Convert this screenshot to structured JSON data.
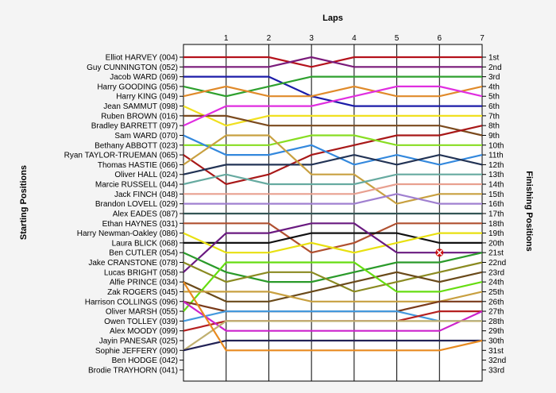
{
  "chart_data": {
    "type": "line",
    "title": "",
    "xlabel": "Laps",
    "ylabel": "Starting Positions",
    "ylabel_right": "Finishing Positions",
    "x": [
      0,
      1,
      2,
      3,
      4,
      5,
      6,
      7
    ],
    "xticks": [
      "1",
      "2",
      "3",
      "4",
      "5",
      "6",
      "7"
    ],
    "ylim": [
      1,
      33
    ],
    "grid": true,
    "starting_order": [
      "Elliot HARVEY (004)",
      "Guy CUNNINGTON (052)",
      "Jacob WARD (069)",
      "Harry GOODING (056)",
      "Harry KING (049)",
      "Jean SAMMUT (098)",
      "Ruben BROWN (016)",
      "Bradley BARRETT (097)",
      "Sam WARD (070)",
      "Bethany ABBOTT (023)",
      "Ryan TAYLOR-TRUEMAN (065)",
      "Thomas HASTIE (066)",
      "Oliver HALL (024)",
      "Marcie RUSSELL (044)",
      "Jack FINCH (048)",
      "Brandon LOVELL (029)",
      "Alex EADES (087)",
      "Ethan HAYNES (031)",
      "Harry Newman-Oakley (086)",
      "Laura BLICK (068)",
      "Ben CUTLER (054)",
      "Jake CRANSTONE (078)",
      "Lucas BRIGHT (058)",
      "Alfie PRINCE (034)",
      "Zak ROGERS (045)",
      "Harrison COLLINGS (096)",
      "Oliver MARSH (055)",
      "Owen TOLLEY (039)",
      "Alex MOODY (099)",
      "Jayin PANESAR (025)",
      "Sophie JEFFERY (090)",
      "Ben HODGE (042)",
      "Brodie TRAYHORN (041)"
    ],
    "finishing_labels": [
      "1st",
      "2nd",
      "3rd",
      "4th",
      "5th",
      "6th",
      "7th",
      "8th",
      "9th",
      "10th",
      "11th",
      "12th",
      "13th",
      "14th",
      "15th",
      "16th",
      "17th",
      "18th",
      "19th",
      "20th",
      "21st",
      "22nd",
      "23rd",
      "24th",
      "25th",
      "26th",
      "27th",
      "28th",
      "29th",
      "30th",
      "31st",
      "32nd",
      "33rd"
    ],
    "retirement": {
      "lap": 6,
      "position": 21
    },
    "series": [
      {
        "color": "#b5121b",
        "positions": [
          1,
          1,
          1,
          2,
          1,
          1,
          1,
          1
        ]
      },
      {
        "color": "#7a1a7a",
        "positions": [
          2,
          2,
          2,
          1,
          2,
          2,
          2,
          2
        ]
      },
      {
        "color": "#1c1ca8",
        "positions": [
          3,
          3,
          3,
          5,
          6,
          6,
          6,
          6
        ]
      },
      {
        "color": "#2ea02e",
        "positions": [
          4,
          5,
          4,
          3,
          3,
          3,
          3,
          3
        ]
      },
      {
        "color": "#e08a2a",
        "positions": [
          5,
          4,
          5,
          5,
          4,
          5,
          5,
          4
        ]
      },
      {
        "color": "#f0e020",
        "positions": [
          6,
          8,
          7,
          7,
          7,
          7,
          7,
          7
        ]
      },
      {
        "color": "#7b4a1e",
        "positions": [
          7,
          7,
          8,
          8,
          8,
          8,
          8,
          9
        ]
      },
      {
        "color": "#e02ee0",
        "positions": [
          8,
          6,
          6,
          6,
          5,
          4,
          4,
          5
        ]
      },
      {
        "color": "#a81818",
        "positions": [
          11,
          14,
          13,
          11,
          10,
          9,
          9,
          8
        ]
      },
      {
        "color": "#88dd22",
        "positions": [
          10,
          10,
          10,
          9,
          9,
          10,
          10,
          10
        ]
      },
      {
        "color": "#3388dd",
        "positions": [
          9,
          11,
          11,
          10,
          12,
          11,
          12,
          11
        ]
      },
      {
        "color": "#223355",
        "positions": [
          13,
          12,
          12,
          12,
          11,
          12,
          11,
          12
        ]
      },
      {
        "color": "#c8a040",
        "positions": [
          12,
          9,
          9,
          13,
          13,
          16,
          15,
          15
        ]
      },
      {
        "color": "#66aaa0",
        "positions": [
          14,
          13,
          14,
          14,
          14,
          13,
          13,
          13
        ]
      },
      {
        "color": "#e8a090",
        "positions": [
          15,
          15,
          15,
          15,
          15,
          14,
          14,
          14
        ]
      },
      {
        "color": "#a080d0",
        "positions": [
          16,
          16,
          16,
          16,
          16,
          15,
          16,
          16
        ]
      },
      {
        "color": "#335555",
        "positions": [
          17,
          17,
          17,
          17,
          17,
          17,
          17,
          17
        ]
      },
      {
        "color": "#b05030",
        "positions": [
          18,
          18,
          18,
          21,
          20,
          18,
          18,
          18
        ]
      },
      {
        "color": "#111111",
        "positions": [
          20,
          20,
          20,
          19,
          19,
          19,
          20,
          20
        ]
      },
      {
        "color": "#e8e010",
        "positions": [
          19,
          21,
          21,
          20,
          21,
          20,
          19,
          19
        ]
      },
      {
        "color": "#6a1a80",
        "positions": [
          23,
          19,
          19,
          18,
          18,
          21,
          21,
          21
        ]
      },
      {
        "color": "#2a9a2a",
        "positions": [
          21,
          23,
          24,
          24,
          23,
          22,
          22,
          21
        ]
      },
      {
        "color": "#8a8a20",
        "positions": [
          22,
          24,
          23,
          23,
          25,
          24,
          23,
          22
        ]
      },
      {
        "color": "#6a4a1a",
        "positions": [
          24,
          26,
          26,
          25,
          24,
          23,
          24,
          23
        ]
      },
      {
        "color": "#66dd11",
        "positions": [
          27,
          22,
          22,
          22,
          22,
          25,
          25,
          24
        ]
      },
      {
        "color": "#c8a040",
        "positions": [
          25,
          25,
          25,
          26,
          26,
          26,
          26,
          25
        ]
      },
      {
        "color": "#7a3a1a",
        "positions": [
          26,
          27,
          27,
          27,
          27,
          27,
          26,
          26
        ]
      },
      {
        "color": "#4499dd",
        "positions": [
          28,
          27,
          27,
          27,
          27,
          27,
          28,
          28
        ]
      },
      {
        "color": "#b52020",
        "positions": [
          29,
          28,
          28,
          28,
          28,
          28,
          27,
          27
        ]
      },
      {
        "color": "#cc22cc",
        "positions": [
          26,
          29,
          29,
          29,
          29,
          29,
          29,
          27
        ]
      },
      {
        "color": "#c0b070",
        "positions": [
          31,
          28,
          28,
          28,
          28,
          28,
          28,
          28
        ]
      },
      {
        "color": "#222255",
        "positions": [
          31,
          30,
          30,
          30,
          30,
          30,
          30,
          30
        ]
      },
      {
        "color": "#e88a20",
        "positions": [
          24,
          31,
          31,
          31,
          31,
          31,
          31,
          30
        ]
      }
    ]
  }
}
